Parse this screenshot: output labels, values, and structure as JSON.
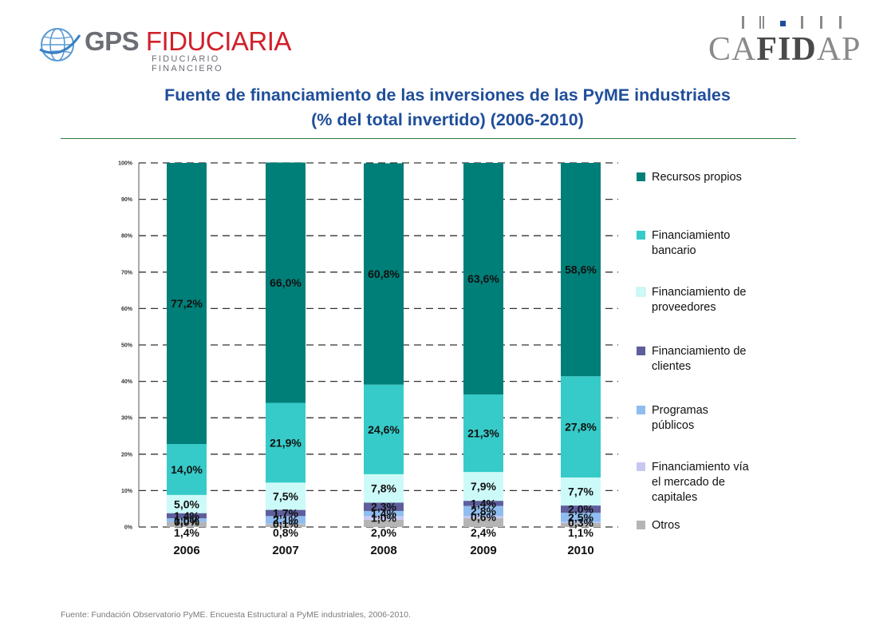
{
  "logos": {
    "gps_name_a": "GPS",
    "gps_name_b": "FIDUCIARIA",
    "gps_subtitle": "FIDUCIARIO FINANCIERO",
    "cafidap_a": "CA",
    "cafidap_b": "FID",
    "cafidap_c": "AP",
    "brand_red": "#d0202a",
    "brand_gray": "#6b6e74"
  },
  "header": {
    "title_line1": "Fuente de financiamiento de las inversiones de las PyME industriales",
    "title_line2": "(% del total invertido) (2006-2010)"
  },
  "footer": {
    "source": "Fuente: Fundación Observatorio PyME. Encuesta Estructural a PyME industriales, 2006-2010."
  },
  "chart_data": {
    "type": "bar",
    "stacked": true,
    "title": "Fuente de financiamiento de las inversiones de las PyME industriales (% del total invertido) (2006-2010)",
    "xlabel": "",
    "ylabel": "",
    "ylim": [
      0,
      100
    ],
    "yticks": [
      "0%",
      "10%",
      "20%",
      "30%",
      "40%",
      "50%",
      "60%",
      "70%",
      "80%",
      "90%",
      "100%"
    ],
    "grid": "dashed horizontal",
    "legend_position": "right",
    "categories": [
      "2006",
      "2007",
      "2008",
      "2009",
      "2010"
    ],
    "series": [
      {
        "name": "Otros",
        "color": "#b5b5b5",
        "values": [
          1.4,
          0.8,
          2.0,
          2.4,
          1.1
        ],
        "labels": [
          "1,4%",
          "0,8%",
          "2,0%",
          "2,4%",
          "1,1%"
        ]
      },
      {
        "name": "Financiamiento vía el mercado de capitales",
        "color": "#c7c8f2",
        "values": [
          0.0,
          0.1,
          1.0,
          0.6,
          0.3
        ],
        "labels": [
          "0,0%",
          "0,1%",
          "1,0%",
          "0,6%",
          "0,3%"
        ]
      },
      {
        "name": "Programas públicos",
        "color": "#8fbdf0",
        "values": [
          1.0,
          2.1,
          1.4,
          2.8,
          2.5
        ],
        "labels": [
          "1,0%",
          "2,1%",
          "1,4%",
          "2,8%",
          "2,5%"
        ]
      },
      {
        "name": "Financiamiento de clientes",
        "color": "#5e5e9c",
        "values": [
          1.4,
          1.7,
          2.3,
          1.4,
          2.0
        ],
        "labels": [
          "1,4%",
          "1,7%",
          "2,3%",
          "1,4%",
          "2,0%"
        ]
      },
      {
        "name": "Financiamiento de proveedores",
        "color": "#ccfaf8",
        "values": [
          5.0,
          7.5,
          7.8,
          7.9,
          7.7
        ],
        "labels": [
          "5,0%",
          "7,5%",
          "7,8%",
          "7,9%",
          "7,7%"
        ]
      },
      {
        "name": "Financiamiento bancario",
        "color": "#36cbc8",
        "values": [
          14.0,
          21.9,
          24.6,
          21.3,
          27.8
        ],
        "labels": [
          "14,0%",
          "21,9%",
          "24,6%",
          "21,3%",
          "27,8%"
        ]
      },
      {
        "name": "Recursos propios",
        "color": "#007e78",
        "values": [
          77.2,
          66.0,
          60.8,
          63.6,
          58.6
        ],
        "labels": [
          "77,2%",
          "66,0%",
          "60,8%",
          "63,6%",
          "58,6%"
        ]
      }
    ],
    "legend": [
      {
        "lines": [
          "Recursos propios"
        ],
        "color": "#007e78"
      },
      {
        "lines": [
          "Financiamiento",
          "bancario"
        ],
        "color": "#36cbc8"
      },
      {
        "lines": [
          "Financiamiento de",
          "proveedores"
        ],
        "color": "#ccfaf8"
      },
      {
        "lines": [
          "Financiamiento de",
          "clientes"
        ],
        "color": "#5e5e9c"
      },
      {
        "lines": [
          "Programas",
          "públicos"
        ],
        "color": "#8fbdf0"
      },
      {
        "lines": [
          "Financiamiento vía",
          "el mercado de",
          "capitales"
        ],
        "color": "#c7c8f2"
      },
      {
        "lines": [
          "Otros"
        ],
        "color": "#b5b5b5"
      }
    ]
  }
}
